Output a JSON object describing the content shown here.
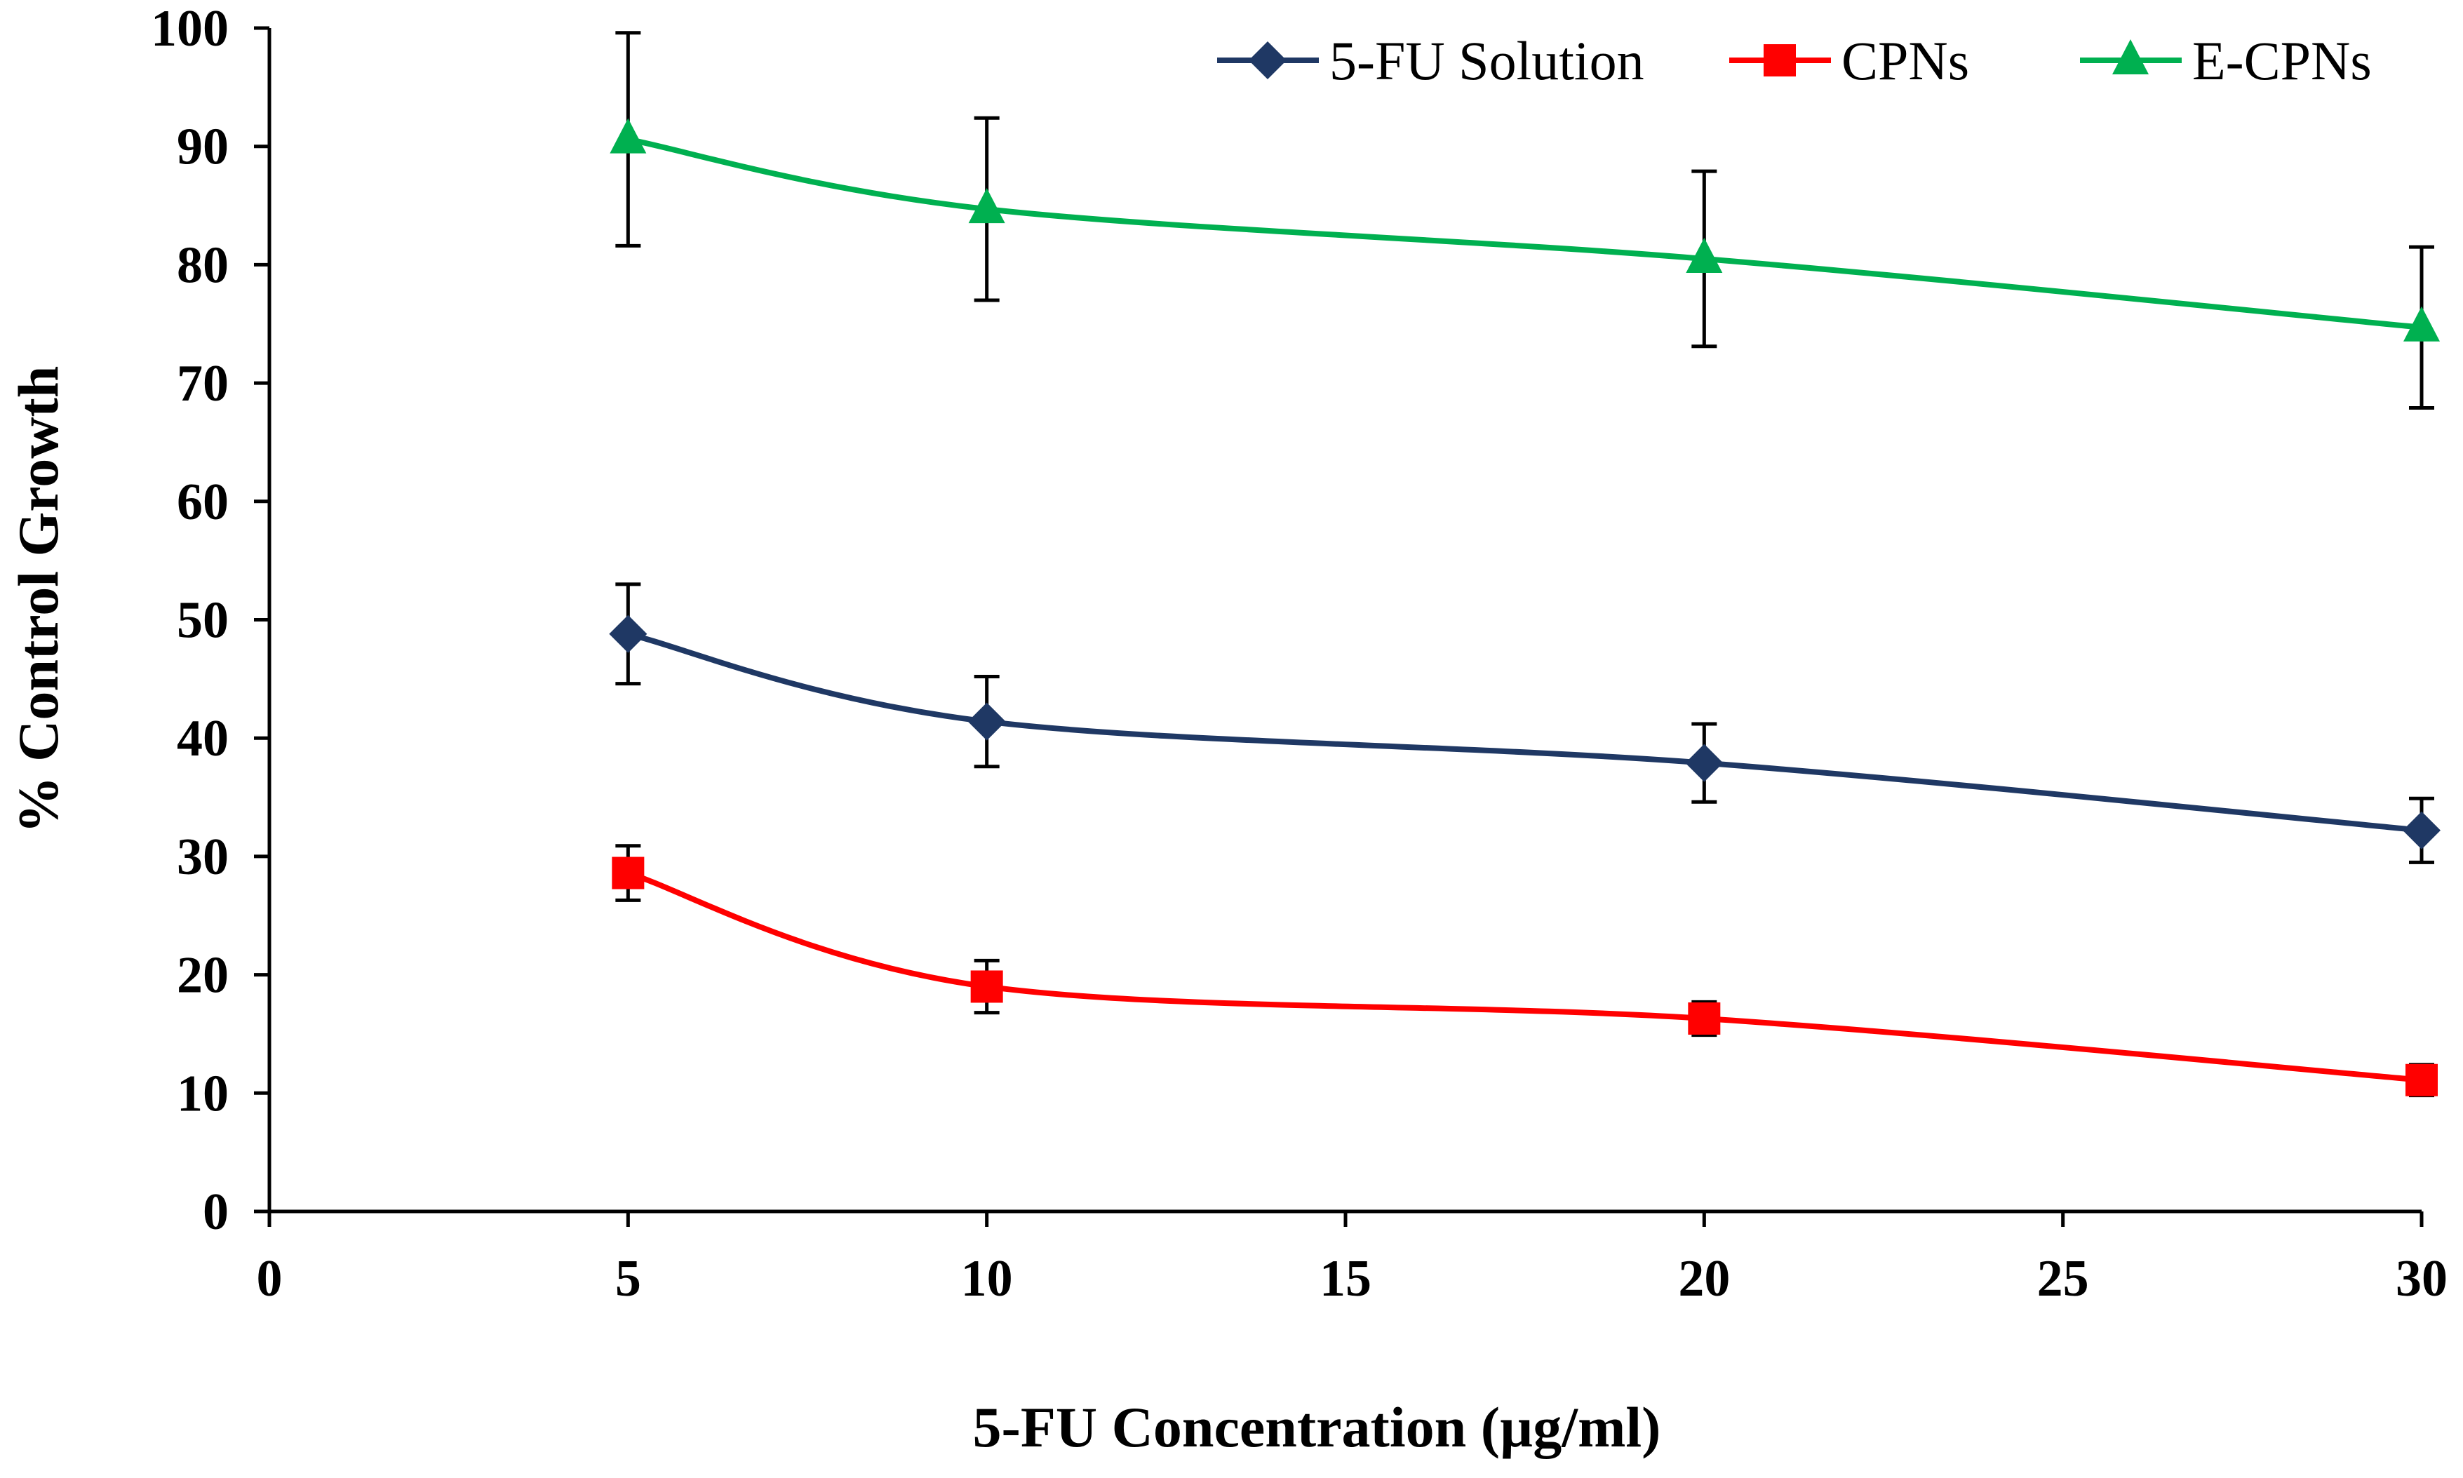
{
  "chart_data": {
    "type": "line",
    "title": "",
    "xlabel": "5-FU Concentration  (µg/ml)",
    "ylabel": "% Control Growth",
    "xlim": [
      0,
      30
    ],
    "ylim": [
      0,
      100
    ],
    "x_ticks": [
      "0",
      "5",
      "10",
      "15",
      "20",
      "25",
      "30"
    ],
    "y_ticks": [
      "0",
      "10",
      "20",
      "30",
      "40",
      "50",
      "60",
      "70",
      "80",
      "90",
      "100"
    ],
    "grid": false,
    "legend_position": "top-right",
    "series": [
      {
        "name": "5-FU Solution",
        "color": "#1F3864",
        "marker": "diamond",
        "x": [
          5,
          10,
          20,
          30
        ],
        "y": [
          48.8,
          41.4,
          37.9,
          32.2
        ],
        "error": [
          4.2,
          3.8,
          3.3,
          2.7
        ]
      },
      {
        "name": "CPNs",
        "color": "#FF0000",
        "marker": "square",
        "x": [
          5,
          10,
          20,
          30
        ],
        "y": [
          28.6,
          19.0,
          16.3,
          11.1
        ],
        "error": [
          2.3,
          2.2,
          1.4,
          1.3
        ]
      },
      {
        "name": "E-CPNs",
        "color": "#00B050",
        "marker": "triangle",
        "x": [
          5,
          10,
          20,
          30
        ],
        "y": [
          90.6,
          84.7,
          80.5,
          74.7
        ],
        "error": [
          9.0,
          7.7,
          7.4,
          6.8
        ]
      }
    ]
  }
}
